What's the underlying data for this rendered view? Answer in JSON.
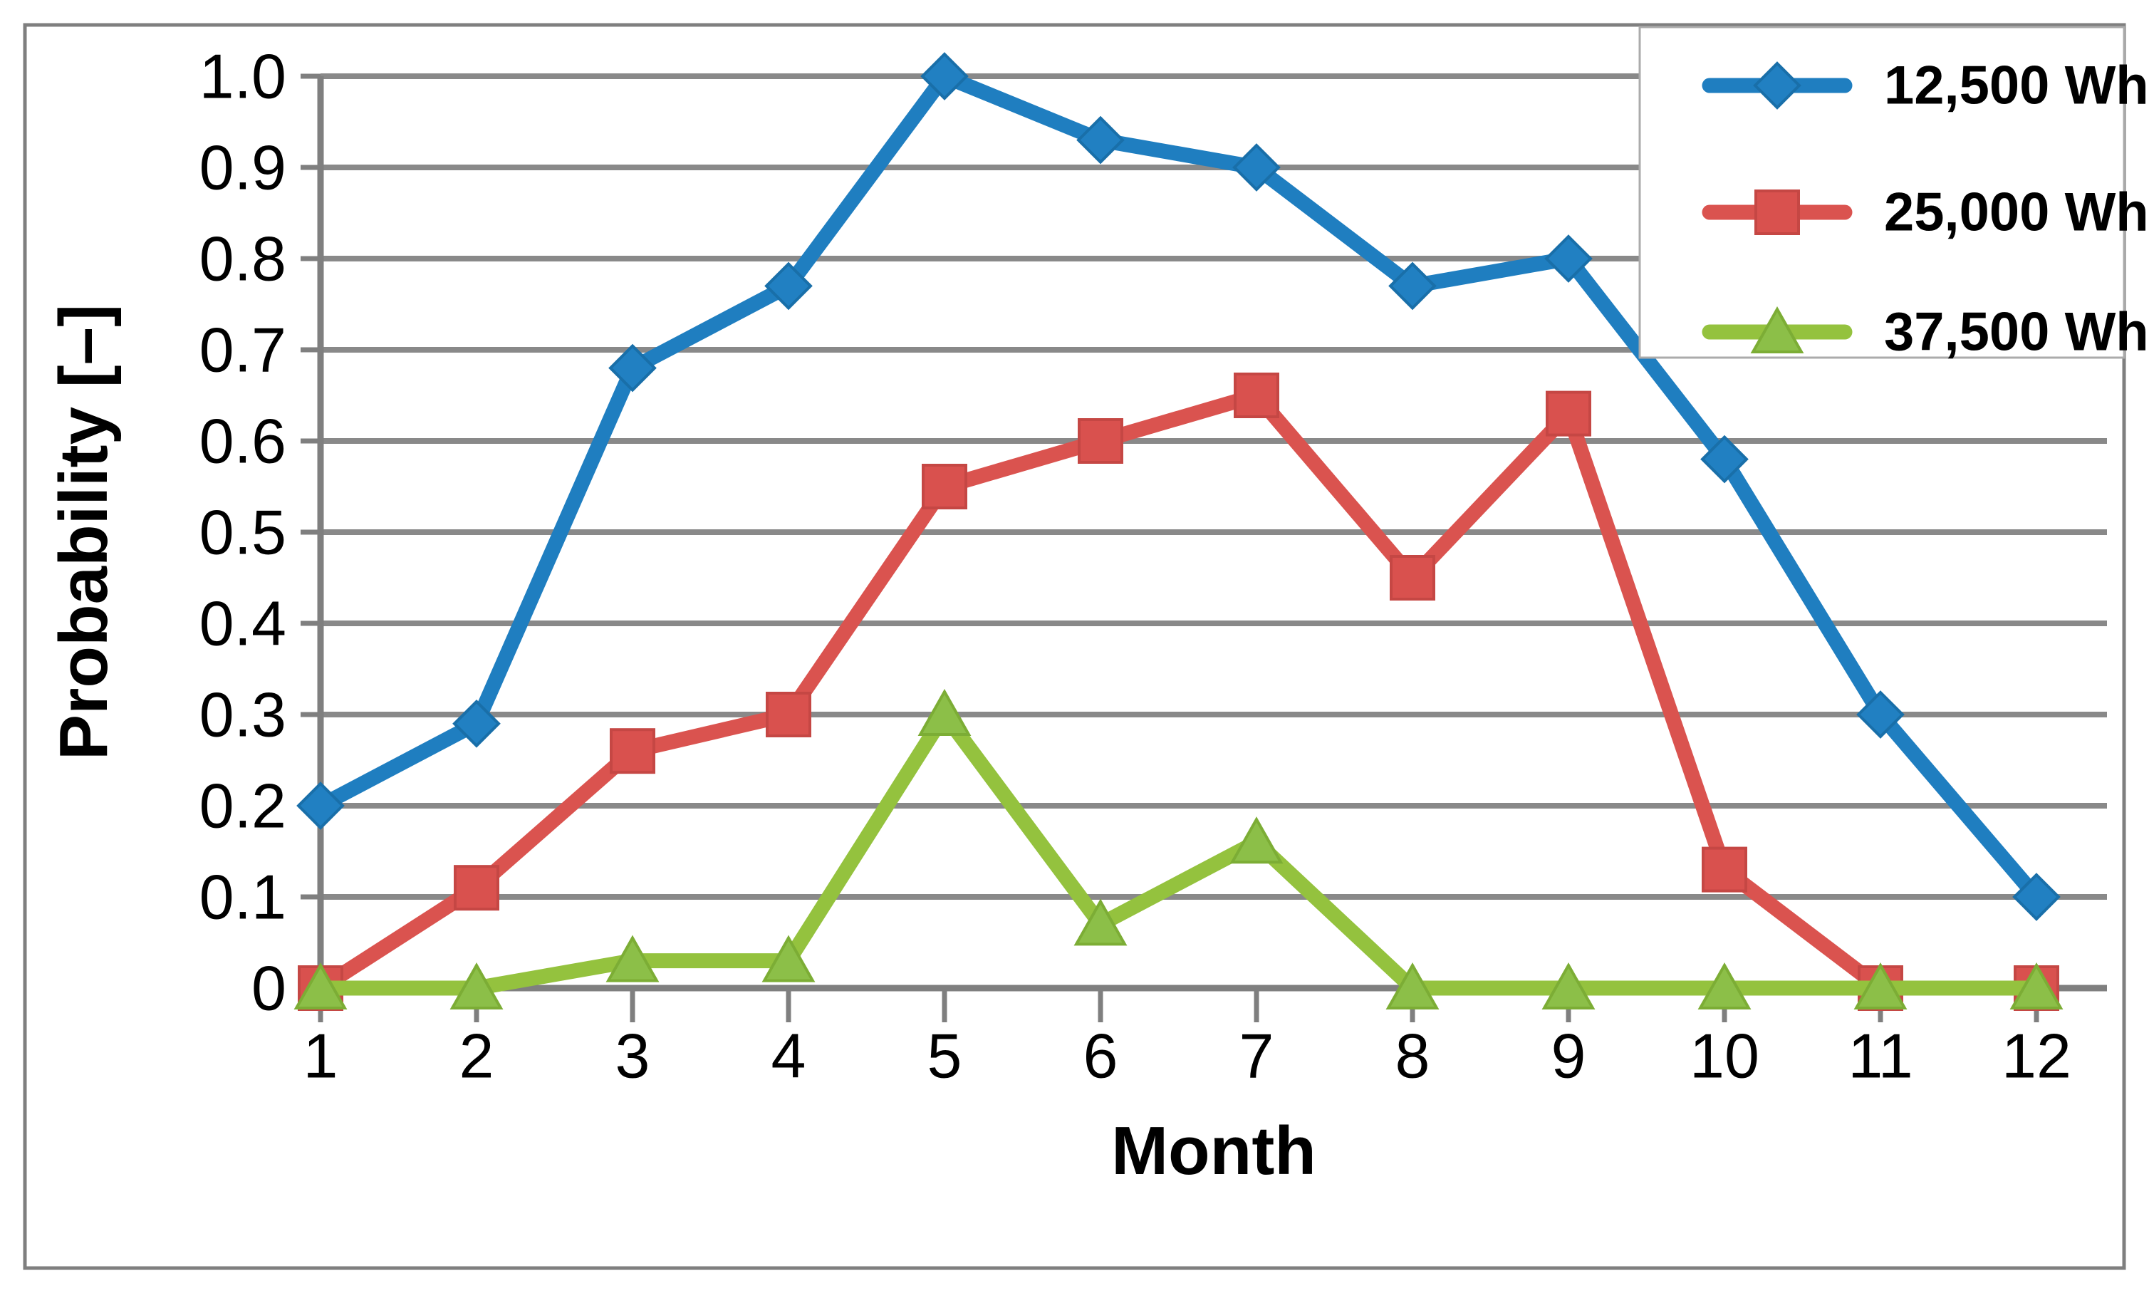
{
  "figure": {
    "background": "#ffffff",
    "border_color": "#7f7f7f",
    "text_color": "#000000"
  },
  "chart_data": {
    "type": "line",
    "title": "",
    "xlabel": "Month",
    "ylabel": "Probability [–]",
    "x": [
      1,
      2,
      3,
      4,
      5,
      6,
      7,
      8,
      9,
      10,
      11,
      12
    ],
    "x_tick_labels": [
      "1",
      "2",
      "3",
      "4",
      "5",
      "6",
      "7",
      "8",
      "9",
      "10",
      "11",
      "12"
    ],
    "y_tick_labels": [
      "0",
      "0.1",
      "0.2",
      "0.3",
      "0.4",
      "0.5",
      "0.6",
      "0.7",
      "0.8",
      "0.9",
      "1.0"
    ],
    "ylim": [
      0,
      1.0
    ],
    "grid": "horizontal",
    "grid_color": "#898989",
    "axis_color": "#7f7f7f",
    "legend_position": "top-right",
    "legend_border_color": "#ababab",
    "series": [
      {
        "name": "12,500 Wh",
        "marker": "diamond",
        "color": "#1f7ec0",
        "marker_fill": "#2180c2",
        "marker_stroke": "#196fa9",
        "values": [
          0.2,
          0.29,
          0.68,
          0.77,
          1.0,
          0.93,
          0.9,
          0.77,
          0.8,
          0.58,
          0.3,
          0.1
        ]
      },
      {
        "name": "25,000 Wh",
        "marker": "square",
        "color": "#da534f",
        "marker_fill": "#d9514e",
        "marker_stroke": "#c54744",
        "values": [
          0.0,
          0.11,
          0.26,
          0.3,
          0.55,
          0.6,
          0.65,
          0.45,
          0.63,
          0.13,
          0.0,
          0.0
        ]
      },
      {
        "name": "37,500 Wh",
        "marker": "triangle",
        "color": "#94c23e",
        "marker_fill": "#8cbf48",
        "marker_stroke": "#7cad35",
        "values": [
          0.0,
          0.0,
          0.03,
          0.03,
          0.3,
          0.07,
          0.16,
          0.0,
          0.0,
          0.0,
          0.0,
          0.0
        ]
      }
    ]
  }
}
